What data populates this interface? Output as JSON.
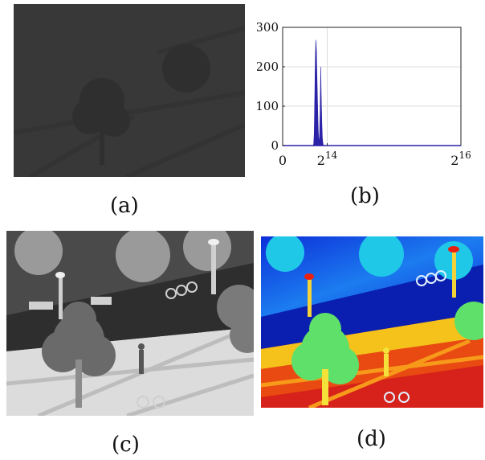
{
  "captions": {
    "a": "(a)",
    "b": "(b)",
    "c": "(c)",
    "d": "(d)"
  },
  "chart_data": {
    "type": "area",
    "title": "",
    "xlabel": "",
    "ylabel": "",
    "x_ticks": [
      {
        "value": 0,
        "label": "0",
        "exp": ""
      },
      {
        "value": 16384,
        "label": "2",
        "exp": "14"
      },
      {
        "value": 65536,
        "label": "2",
        "exp": "16"
      }
    ],
    "y_ticks": [
      0,
      100,
      200,
      300
    ],
    "xlim": [
      0,
      65536
    ],
    "ylim": [
      0,
      300
    ],
    "grid": true,
    "fill_color": "#2b22a8",
    "series": [
      {
        "x": [
          11200,
          11400,
          11600,
          11800,
          12000,
          12200,
          12400,
          12600,
          12800,
          13000,
          13200,
          13400,
          13600,
          13800,
          14000,
          14200,
          14400,
          14600,
          14800,
          15000,
          15200,
          15400,
          15600,
          15800,
          16000,
          16200
        ],
        "values": [
          0,
          4,
          30,
          120,
          215,
          268,
          245,
          180,
          120,
          60,
          20,
          8,
          30,
          90,
          200,
          120,
          60,
          20,
          6,
          0,
          0,
          0,
          0,
          0,
          0,
          0
        ]
      }
    ]
  },
  "images": {
    "a": {
      "tone": "#3a3a3a"
    },
    "c": {
      "sky": "#9aa0a0",
      "ground": "#e8e8e8"
    },
    "d": {
      "cold": "#0a2fd6",
      "warm": "#e01a0a"
    }
  }
}
